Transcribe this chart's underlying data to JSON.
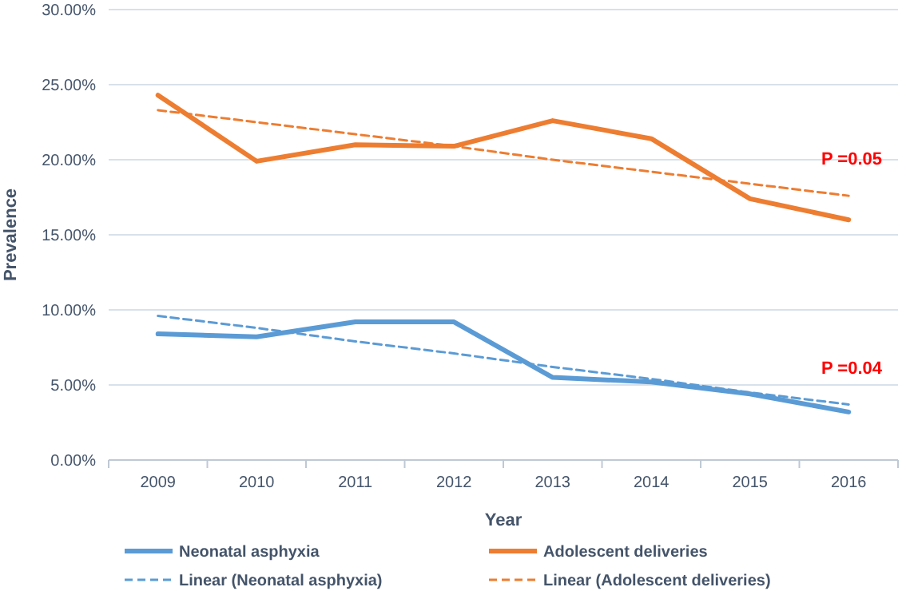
{
  "chart_data": {
    "type": "line",
    "xlabel": "Year",
    "ylabel": "Prevalence",
    "categories": [
      "2009",
      "2010",
      "2011",
      "2012",
      "2013",
      "2014",
      "2015",
      "2016"
    ],
    "series": [
      {
        "name": "Neonatal asphyxia",
        "color": "#5b9bd5",
        "values": [
          8.4,
          8.2,
          9.2,
          9.2,
          5.5,
          5.2,
          4.4,
          3.2
        ]
      },
      {
        "name": "Adolescent deliveries",
        "color": "#ed7d31",
        "values": [
          24.3,
          19.9,
          21.0,
          20.9,
          22.6,
          21.4,
          17.4,
          16.0
        ]
      },
      {
        "name": "Linear (Neonatal asphyxia)",
        "color": "#5b9bd5",
        "line_style": "dashed",
        "values": [
          9.6,
          8.8,
          7.9,
          7.1,
          6.2,
          5.4,
          4.5,
          3.7
        ]
      },
      {
        "name": "Linear (Adolescent deliveries)",
        "color": "#ed7d31",
        "line_style": "dashed",
        "values": [
          23.3,
          22.5,
          21.7,
          20.9,
          20.0,
          19.2,
          18.4,
          17.6
        ]
      }
    ],
    "ylim": [
      0,
      30
    ],
    "yticks": [
      {
        "value": 0,
        "label": "0.00%"
      },
      {
        "value": 5,
        "label": "5.00%"
      },
      {
        "value": 10,
        "label": "10.00%"
      },
      {
        "value": 15,
        "label": "15.00%"
      },
      {
        "value": 20,
        "label": "20.00%"
      },
      {
        "value": 25,
        "label": "25.00%"
      },
      {
        "value": 30,
        "label": "30.00%"
      }
    ],
    "grid": "y",
    "legend": "bottom",
    "marker": "none",
    "line_style": "solid",
    "annotations": [
      "P =0.05",
      "P =0.04"
    ]
  }
}
